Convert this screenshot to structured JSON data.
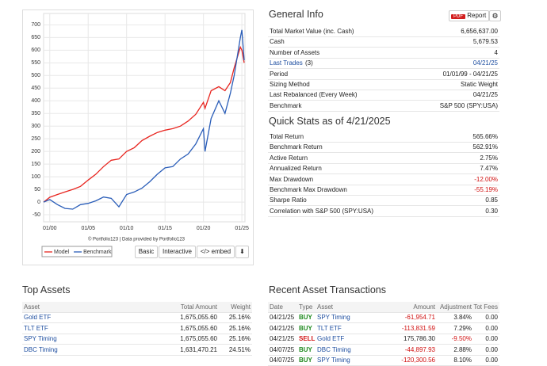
{
  "chart_data": {
    "type": "line",
    "x": [
      1999.2,
      2000,
      2001,
      2002,
      2003,
      2004,
      2005,
      2006,
      2007,
      2008,
      2009,
      2010,
      2011,
      2012,
      2013,
      2014,
      2015,
      2016,
      2017,
      2018,
      2019,
      2020,
      2020.2,
      2021,
      2022,
      2022.8,
      2023.5,
      2024,
      2024.8,
      2025,
      2025.3
    ],
    "series": [
      {
        "name": "Model",
        "color": "#e8251f",
        "values": [
          0,
          19,
          30,
          40,
          50,
          62,
          87,
          110,
          140,
          165,
          170,
          200,
          215,
          243,
          260,
          275,
          284,
          290,
          300,
          320,
          347,
          394,
          370,
          440,
          456,
          440,
          472,
          530,
          612,
          600,
          550
        ]
      },
      {
        "name": "Benchmark",
        "color": "#2a5db8",
        "values": [
          0,
          10,
          -10,
          -25,
          -28,
          -10,
          -5,
          5,
          20,
          15,
          -19,
          30,
          40,
          55,
          80,
          110,
          135,
          140,
          170,
          190,
          230,
          290,
          200,
          330,
          400,
          350,
          430,
          500,
          650,
          680,
          560
        ]
      }
    ],
    "xlim": [
      1999.2,
      2025.4
    ],
    "xticks": [
      {
        "value": 2000,
        "label": "01/00"
      },
      {
        "value": 2005,
        "label": "01/05"
      },
      {
        "value": 2010,
        "label": "01/10"
      },
      {
        "value": 2015,
        "label": "01/15"
      },
      {
        "value": 2020,
        "label": "01/20"
      },
      {
        "value": 2025,
        "label": "01/25"
      }
    ],
    "ylim": [
      -78,
      745
    ],
    "yticks": [
      -50,
      0,
      50,
      100,
      150,
      200,
      250,
      300,
      350,
      400,
      450,
      500,
      550,
      600,
      650,
      700
    ],
    "grid": true,
    "credit": "© Portfolio123 | Data provided by Portfolio123"
  },
  "toolbar": [
    "Basic",
    "Interactive",
    "</> embed"
  ],
  "general_info": {
    "title": "General Info",
    "pdf_badge": "PDF",
    "report_button": "Report",
    "rows": [
      {
        "label": "Total Market Value (inc. Cash)",
        "value": "6,656,637.00"
      },
      {
        "label": "Cash",
        "value": "5,679.53"
      },
      {
        "label": "Number of Assets",
        "value": "4"
      },
      {
        "label": "Last Trades",
        "note": "(3)",
        "value": "04/21/25",
        "link": true
      },
      {
        "label": "Period",
        "value": "01/01/99 - 04/21/25"
      },
      {
        "label": "Sizing Method",
        "value": "Static Weight"
      },
      {
        "label": "Last Rebalanced (Every Week)",
        "value": "04/21/25"
      },
      {
        "label": "Benchmark",
        "value": "S&P 500 (SPY:USA)"
      }
    ]
  },
  "quick_stats": {
    "title": "Quick Stats as of 4/21/2025",
    "rows": [
      {
        "label": "Total Return",
        "value": "565.66%"
      },
      {
        "label": "Benchmark Return",
        "value": "562.91%"
      },
      {
        "label": "Active Return",
        "value": "2.75%"
      },
      {
        "label": "Annualized Return",
        "value": "7.47%"
      },
      {
        "label": "Max Drawdown",
        "value": "-12.00%"
      },
      {
        "label": "Benchmark Max Drawdown",
        "value": "-55.19%"
      },
      {
        "label": "Sharpe Ratio",
        "value": "0.85"
      },
      {
        "label": "Correlation with S&P 500 (SPY:USA)",
        "value": "0.30"
      }
    ]
  },
  "top_assets": {
    "title": "Top Assets",
    "columns": [
      "Asset",
      "Total Amount",
      "Weight"
    ],
    "rows": [
      [
        "Gold ETF",
        "1,675,055.60",
        "25.16%"
      ],
      [
        "TLT ETF",
        "1,675,055.60",
        "25.16%"
      ],
      [
        "SPY Timing",
        "1,675,055.60",
        "25.16%"
      ],
      [
        "DBC Timing",
        "1,631,470.21",
        "24.51%"
      ]
    ]
  },
  "transactions": {
    "title": "Recent Asset Transactions",
    "columns": [
      "Date",
      "Type",
      "Asset",
      "Amount",
      "Adjustment",
      "Tot Fees"
    ],
    "type_colors": {
      "BUY": "#1f8a1f",
      "SELL": "#d01010"
    },
    "rows": [
      [
        "04/21/25",
        "BUY",
        "SPY Timing",
        "-61,954.71",
        "3.84%",
        "0.00"
      ],
      [
        "04/21/25",
        "BUY",
        "TLT ETF",
        "-113,831.59",
        "7.29%",
        "0.00"
      ],
      [
        "04/21/25",
        "SELL",
        "Gold ETF",
        "175,786.30",
        "-9.50%",
        "0.00"
      ],
      [
        "04/07/25",
        "BUY",
        "DBC Timing",
        "-44,897.93",
        "2.88%",
        "0.00"
      ],
      [
        "04/07/25",
        "BUY",
        "SPY Timing",
        "-120,300.56",
        "8.10%",
        "0.00"
      ]
    ]
  }
}
